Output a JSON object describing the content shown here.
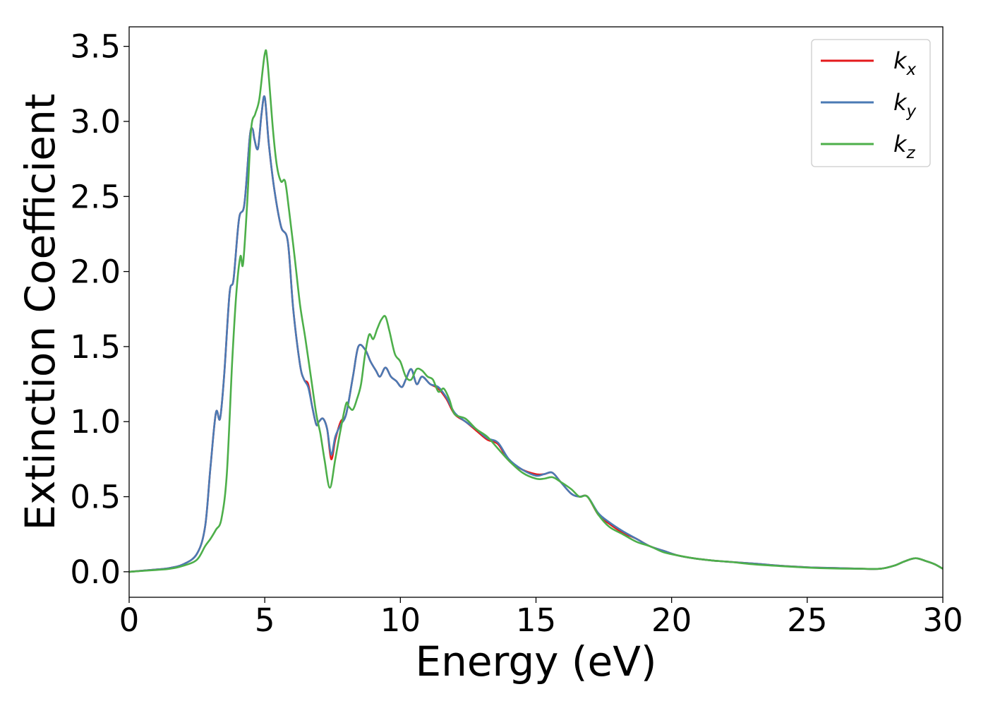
{
  "chart_data": {
    "type": "line",
    "xlabel": "Energy (eV)",
    "ylabel": "Extinction Coefficient",
    "xlim": [
      0,
      30
    ],
    "ylim": [
      -0.17,
      3.63
    ],
    "xticks": [
      "0",
      "5",
      "10",
      "15",
      "20",
      "25",
      "30"
    ],
    "yticks": [
      "0.0",
      "0.5",
      "1.0",
      "1.5",
      "2.0",
      "2.5",
      "3.0",
      "3.5"
    ],
    "grid": false,
    "legend": {
      "position": "top-right"
    },
    "series": [
      {
        "name": "k_x",
        "name_base": "k",
        "name_sub": "x",
        "color": "#e41a1c",
        "x": [
          0,
          1,
          1.5,
          2,
          2.5,
          2.8,
          3,
          3.2,
          3.35,
          3.5,
          3.7,
          3.85,
          4.05,
          4.25,
          4.45,
          4.55,
          4.62,
          4.75,
          4.88,
          5.0,
          5.15,
          5.35,
          5.6,
          5.85,
          6.05,
          6.3,
          6.45,
          6.6,
          6.75,
          6.9,
          7.0,
          7.15,
          7.3,
          7.45,
          7.6,
          7.8,
          8.0,
          8.25,
          8.45,
          8.7,
          8.9,
          9.1,
          9.25,
          9.45,
          9.65,
          9.85,
          10.05,
          10.2,
          10.4,
          10.6,
          10.8,
          11.1,
          11.4,
          11.7,
          12.0,
          12.4,
          12.8,
          13.2,
          13.6,
          14.0,
          14.5,
          15.0,
          15.3,
          15.6,
          15.9,
          16.3,
          16.6,
          16.9,
          17.3,
          17.7,
          18.2,
          18.7,
          19.2,
          19.7,
          20.2,
          20.8,
          21.5,
          22.2,
          23.0,
          24.0,
          25.0,
          26.0,
          27.0,
          27.7,
          28.2,
          28.6,
          29.0,
          29.4,
          29.7,
          30
        ],
        "y": [
          0.0,
          0.015,
          0.025,
          0.05,
          0.12,
          0.3,
          0.7,
          1.06,
          1.02,
          1.3,
          1.85,
          1.95,
          2.35,
          2.45,
          2.9,
          2.95,
          2.88,
          2.82,
          3.05,
          3.16,
          2.85,
          2.55,
          2.3,
          2.2,
          1.75,
          1.38,
          1.28,
          1.25,
          1.1,
          0.98,
          1.0,
          1.02,
          0.95,
          0.75,
          0.88,
          1.0,
          1.05,
          1.3,
          1.5,
          1.48,
          1.4,
          1.34,
          1.3,
          1.36,
          1.3,
          1.27,
          1.23,
          1.28,
          1.35,
          1.25,
          1.3,
          1.25,
          1.22,
          1.15,
          1.05,
          1.0,
          0.94,
          0.88,
          0.85,
          0.74,
          0.68,
          0.65,
          0.65,
          0.66,
          0.6,
          0.52,
          0.5,
          0.5,
          0.38,
          0.32,
          0.26,
          0.22,
          0.17,
          0.14,
          0.11,
          0.09,
          0.075,
          0.065,
          0.055,
          0.04,
          0.03,
          0.025,
          0.02,
          0.02,
          0.04,
          0.07,
          0.09,
          0.07,
          0.05,
          0.02
        ]
      },
      {
        "name": "k_y",
        "name_base": "k",
        "name_sub": "y",
        "color": "#4a7ab4",
        "x": [
          0,
          1,
          1.5,
          2,
          2.5,
          2.8,
          3,
          3.2,
          3.35,
          3.5,
          3.7,
          3.85,
          4.05,
          4.25,
          4.45,
          4.55,
          4.62,
          4.75,
          4.88,
          5.0,
          5.15,
          5.35,
          5.6,
          5.85,
          6.05,
          6.3,
          6.45,
          6.6,
          6.75,
          6.9,
          7.0,
          7.15,
          7.3,
          7.45,
          7.6,
          7.8,
          8.0,
          8.25,
          8.45,
          8.7,
          8.9,
          9.1,
          9.25,
          9.45,
          9.65,
          9.85,
          10.05,
          10.2,
          10.4,
          10.6,
          10.8,
          11.1,
          11.4,
          11.7,
          12.0,
          12.4,
          12.8,
          13.2,
          13.6,
          14.0,
          14.5,
          15.0,
          15.3,
          15.6,
          15.9,
          16.3,
          16.6,
          16.9,
          17.3,
          17.7,
          18.2,
          18.7,
          19.2,
          19.7,
          20.2,
          20.8,
          21.5,
          22.2,
          23.0,
          24.0,
          25.0,
          26.0,
          27.0,
          27.7,
          28.2,
          28.6,
          29.0,
          29.4,
          29.7,
          30
        ],
        "y": [
          0.0,
          0.015,
          0.025,
          0.05,
          0.12,
          0.3,
          0.7,
          1.06,
          1.02,
          1.3,
          1.85,
          1.95,
          2.35,
          2.45,
          2.9,
          2.95,
          2.88,
          2.82,
          3.05,
          3.16,
          2.85,
          2.55,
          2.3,
          2.2,
          1.75,
          1.38,
          1.28,
          1.23,
          1.1,
          0.98,
          1.0,
          1.02,
          0.95,
          0.78,
          0.9,
          0.98,
          1.05,
          1.3,
          1.5,
          1.48,
          1.4,
          1.34,
          1.3,
          1.36,
          1.3,
          1.27,
          1.23,
          1.28,
          1.35,
          1.25,
          1.3,
          1.25,
          1.23,
          1.16,
          1.06,
          1.0,
          0.95,
          0.89,
          0.86,
          0.75,
          0.68,
          0.64,
          0.65,
          0.66,
          0.6,
          0.52,
          0.5,
          0.5,
          0.39,
          0.33,
          0.27,
          0.22,
          0.17,
          0.14,
          0.11,
          0.09,
          0.075,
          0.065,
          0.055,
          0.04,
          0.03,
          0.025,
          0.02,
          0.02,
          0.04,
          0.07,
          0.09,
          0.07,
          0.05,
          0.02
        ]
      },
      {
        "name": "k_z",
        "name_base": "k",
        "name_sub": "z",
        "color": "#4daf4a",
        "x": [
          0,
          1,
          1.5,
          2,
          2.5,
          2.8,
          3,
          3.2,
          3.4,
          3.6,
          3.8,
          3.95,
          4.1,
          4.2,
          4.35,
          4.5,
          4.65,
          4.8,
          5.0,
          5.1,
          5.3,
          5.45,
          5.6,
          5.75,
          5.9,
          6.1,
          6.3,
          6.5,
          6.7,
          6.9,
          7.05,
          7.2,
          7.4,
          7.6,
          7.8,
          8.0,
          8.1,
          8.25,
          8.4,
          8.55,
          8.7,
          8.85,
          9.0,
          9.15,
          9.3,
          9.45,
          9.6,
          9.8,
          10.0,
          10.2,
          10.4,
          10.6,
          10.8,
          11.0,
          11.2,
          11.4,
          11.6,
          11.8,
          12.0,
          12.4,
          12.8,
          13.2,
          13.6,
          14.0,
          14.5,
          15.0,
          15.3,
          15.6,
          15.9,
          16.3,
          16.6,
          16.9,
          17.3,
          17.7,
          18.2,
          18.7,
          19.2,
          19.7,
          20.2,
          20.8,
          21.5,
          22.2,
          23.0,
          24.0,
          25.0,
          26.0,
          27.0,
          27.7,
          28.2,
          28.6,
          29.0,
          29.4,
          29.7,
          30
        ],
        "y": [
          0.0,
          0.012,
          0.02,
          0.04,
          0.08,
          0.17,
          0.22,
          0.28,
          0.35,
          0.65,
          1.4,
          1.85,
          2.1,
          2.05,
          2.45,
          2.95,
          3.05,
          3.15,
          3.45,
          3.4,
          2.95,
          2.7,
          2.6,
          2.6,
          2.4,
          2.1,
          1.78,
          1.55,
          1.3,
          1.05,
          0.92,
          0.75,
          0.56,
          0.75,
          0.95,
          1.12,
          1.1,
          1.08,
          1.15,
          1.25,
          1.45,
          1.58,
          1.55,
          1.62,
          1.68,
          1.7,
          1.6,
          1.45,
          1.4,
          1.3,
          1.28,
          1.35,
          1.34,
          1.3,
          1.28,
          1.2,
          1.22,
          1.15,
          1.05,
          1.02,
          0.95,
          0.9,
          0.82,
          0.74,
          0.66,
          0.62,
          0.62,
          0.63,
          0.6,
          0.55,
          0.5,
          0.5,
          0.38,
          0.3,
          0.25,
          0.2,
          0.17,
          0.13,
          0.11,
          0.09,
          0.075,
          0.065,
          0.05,
          0.038,
          0.028,
          0.022,
          0.02,
          0.02,
          0.04,
          0.07,
          0.09,
          0.07,
          0.05,
          0.02
        ]
      }
    ]
  }
}
